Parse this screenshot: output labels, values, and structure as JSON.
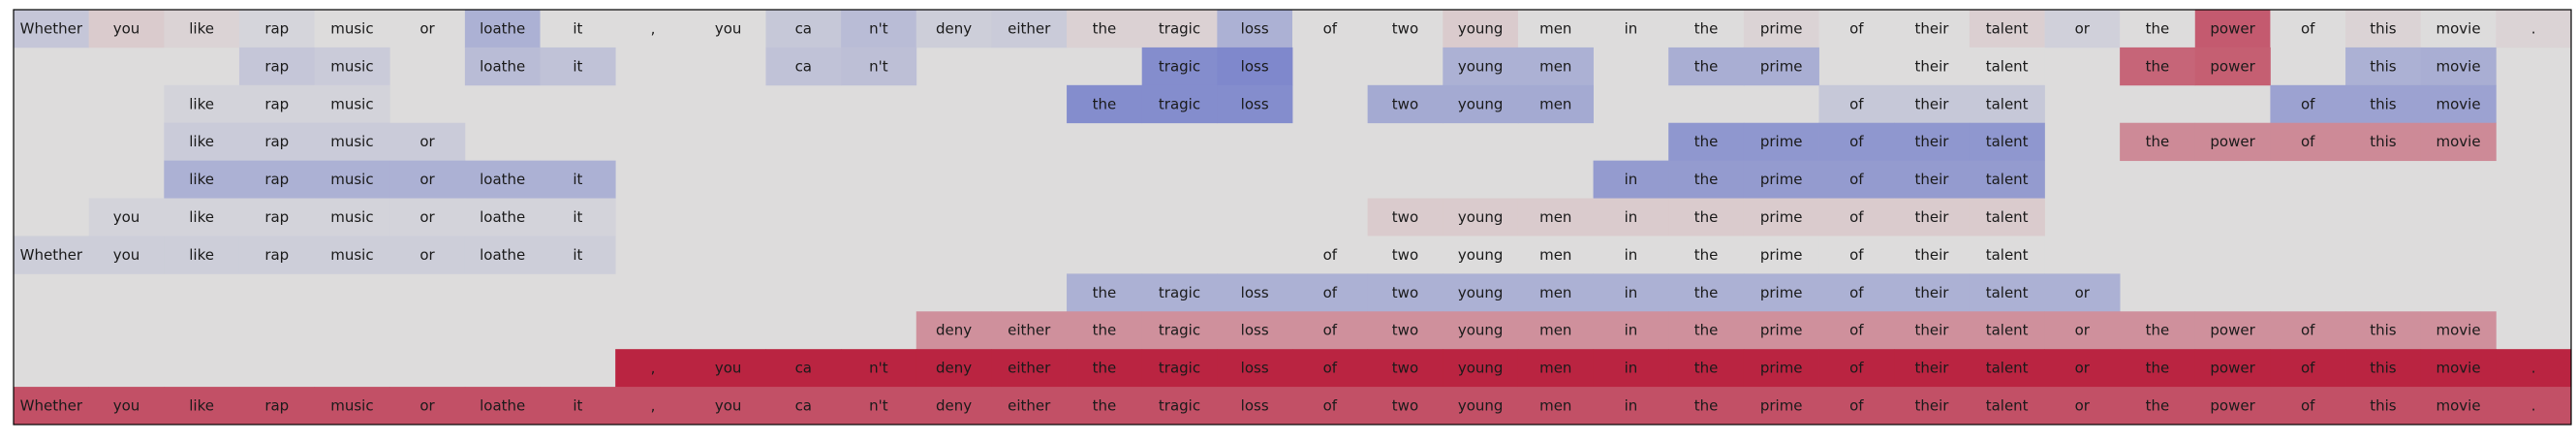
{
  "chart_data": {
    "type": "heatmap",
    "title": "",
    "xlabel": "",
    "ylabel": "",
    "colormap": "coolwarm",
    "value_range": [
      -1,
      1
    ],
    "value_note": "cell colour = signed weight on a blue(negative)-grey(0)-red(positive) scale; empty/grey cells are tokens not in the phrase",
    "tokens": [
      "Whether",
      "you",
      "like",
      "rap",
      "music",
      "or",
      "loathe",
      "it",
      ",",
      "you",
      "ca",
      "n't",
      "deny",
      "either",
      "the",
      "tragic",
      "loss",
      "of",
      "two",
      "young",
      "men",
      "in",
      "the",
      "prime",
      "of",
      "their",
      "talent",
      "or",
      "the",
      "power",
      "of",
      "this",
      "movie",
      "."
    ],
    "rows": [
      {
        "cells": [
          {
            "i": 0,
            "v": -0.15
          },
          {
            "i": 1,
            "v": 0.08
          },
          {
            "i": 2,
            "v": 0.04
          },
          {
            "i": 3,
            "v": -0.05
          },
          {
            "i": 4,
            "v": 0.0
          },
          {
            "i": 5,
            "v": 0.0
          },
          {
            "i": 6,
            "v": -0.3
          },
          {
            "i": 7,
            "v": 0.0
          },
          {
            "i": 8,
            "v": 0.0
          },
          {
            "i": 9,
            "v": 0.0
          },
          {
            "i": 10,
            "v": -0.14
          },
          {
            "i": 11,
            "v": -0.22
          },
          {
            "i": 12,
            "v": -0.1
          },
          {
            "i": 13,
            "v": -0.12
          },
          {
            "i": 14,
            "v": 0.05
          },
          {
            "i": 15,
            "v": 0.05
          },
          {
            "i": 16,
            "v": -0.3
          },
          {
            "i": 17,
            "v": 0.0
          },
          {
            "i": 18,
            "v": 0.0
          },
          {
            "i": 19,
            "v": 0.08
          },
          {
            "i": 20,
            "v": 0.0
          },
          {
            "i": 21,
            "v": 0.0
          },
          {
            "i": 22,
            "v": 0.0
          },
          {
            "i": 23,
            "v": 0.04
          },
          {
            "i": 24,
            "v": 0.0
          },
          {
            "i": 25,
            "v": 0.0
          },
          {
            "i": 26,
            "v": 0.06
          },
          {
            "i": 27,
            "v": -0.08
          },
          {
            "i": 28,
            "v": 0.0
          },
          {
            "i": 29,
            "v": 0.6
          },
          {
            "i": 30,
            "v": 0.0
          },
          {
            "i": 31,
            "v": 0.04
          },
          {
            "i": 32,
            "v": 0.0
          },
          {
            "i": 33,
            "v": 0.04
          }
        ]
      },
      {
        "cells": [
          {
            "i": 3,
            "v": -0.15
          },
          {
            "i": 4,
            "v": -0.12
          },
          {
            "i": 6,
            "v": -0.22
          },
          {
            "i": 7,
            "v": -0.18
          },
          {
            "i": 10,
            "v": -0.18
          },
          {
            "i": 11,
            "v": -0.2
          },
          {
            "i": 15,
            "v": -0.55
          },
          {
            "i": 16,
            "v": -0.58
          },
          {
            "i": 19,
            "v": -0.3
          },
          {
            "i": 20,
            "v": -0.3
          },
          {
            "i": 22,
            "v": -0.32
          },
          {
            "i": 23,
            "v": -0.32
          },
          {
            "i": 25,
            "v": 0.0
          },
          {
            "i": 26,
            "v": 0.0
          },
          {
            "i": 28,
            "v": 0.55
          },
          {
            "i": 29,
            "v": 0.58
          },
          {
            "i": 31,
            "v": -0.3
          },
          {
            "i": 32,
            "v": -0.32
          }
        ]
      },
      {
        "cells": [
          {
            "i": 2,
            "v": -0.06
          },
          {
            "i": 3,
            "v": -0.06
          },
          {
            "i": 4,
            "v": -0.06
          },
          {
            "i": 14,
            "v": -0.55
          },
          {
            "i": 15,
            "v": -0.55
          },
          {
            "i": 16,
            "v": -0.55
          },
          {
            "i": 18,
            "v": -0.35
          },
          {
            "i": 19,
            "v": -0.35
          },
          {
            "i": 20,
            "v": -0.35
          },
          {
            "i": 24,
            "v": -0.14
          },
          {
            "i": 25,
            "v": -0.14
          },
          {
            "i": 26,
            "v": -0.14
          },
          {
            "i": 30,
            "v": -0.4
          },
          {
            "i": 31,
            "v": -0.4
          },
          {
            "i": 32,
            "v": -0.4
          }
        ]
      },
      {
        "cells": [
          {
            "i": 2,
            "v": -0.12
          },
          {
            "i": 3,
            "v": -0.12
          },
          {
            "i": 4,
            "v": -0.12
          },
          {
            "i": 5,
            "v": -0.12
          },
          {
            "i": 22,
            "v": -0.48
          },
          {
            "i": 23,
            "v": -0.48
          },
          {
            "i": 24,
            "v": -0.48
          },
          {
            "i": 25,
            "v": -0.48
          },
          {
            "i": 26,
            "v": -0.48
          },
          {
            "i": 28,
            "v": 0.38
          },
          {
            "i": 29,
            "v": 0.38
          },
          {
            "i": 30,
            "v": 0.38
          },
          {
            "i": 31,
            "v": 0.38
          },
          {
            "i": 32,
            "v": 0.38
          }
        ]
      },
      {
        "cells": [
          {
            "i": 2,
            "v": -0.3
          },
          {
            "i": 3,
            "v": -0.3
          },
          {
            "i": 4,
            "v": -0.3
          },
          {
            "i": 5,
            "v": -0.3
          },
          {
            "i": 6,
            "v": -0.3
          },
          {
            "i": 7,
            "v": -0.3
          },
          {
            "i": 21,
            "v": -0.45
          },
          {
            "i": 22,
            "v": -0.45
          },
          {
            "i": 23,
            "v": -0.45
          },
          {
            "i": 24,
            "v": -0.45
          },
          {
            "i": 25,
            "v": -0.45
          },
          {
            "i": 26,
            "v": -0.45
          }
        ]
      },
      {
        "cells": [
          {
            "i": 1,
            "v": -0.06
          },
          {
            "i": 2,
            "v": -0.06
          },
          {
            "i": 3,
            "v": -0.06
          },
          {
            "i": 4,
            "v": -0.06
          },
          {
            "i": 5,
            "v": -0.06
          },
          {
            "i": 6,
            "v": -0.06
          },
          {
            "i": 7,
            "v": -0.06
          },
          {
            "i": 18,
            "v": 0.08
          },
          {
            "i": 19,
            "v": 0.08
          },
          {
            "i": 20,
            "v": 0.08
          },
          {
            "i": 21,
            "v": 0.08
          },
          {
            "i": 22,
            "v": 0.08
          },
          {
            "i": 23,
            "v": 0.08
          },
          {
            "i": 24,
            "v": 0.08
          },
          {
            "i": 25,
            "v": 0.08
          },
          {
            "i": 26,
            "v": 0.08
          }
        ]
      },
      {
        "cells": [
          {
            "i": 0,
            "v": -0.1
          },
          {
            "i": 1,
            "v": -0.1
          },
          {
            "i": 2,
            "v": -0.1
          },
          {
            "i": 3,
            "v": -0.1
          },
          {
            "i": 4,
            "v": -0.1
          },
          {
            "i": 5,
            "v": -0.1
          },
          {
            "i": 6,
            "v": -0.1
          },
          {
            "i": 7,
            "v": -0.1
          },
          {
            "i": 17,
            "v": 0.0
          },
          {
            "i": 18,
            "v": 0.0
          },
          {
            "i": 19,
            "v": 0.0
          },
          {
            "i": 20,
            "v": 0.0
          },
          {
            "i": 21,
            "v": 0.0
          },
          {
            "i": 22,
            "v": 0.0
          },
          {
            "i": 23,
            "v": 0.0
          },
          {
            "i": 24,
            "v": 0.0
          },
          {
            "i": 25,
            "v": 0.0
          },
          {
            "i": 26,
            "v": 0.0
          }
        ]
      },
      {
        "cells": [
          {
            "i": 14,
            "v": -0.3
          },
          {
            "i": 15,
            "v": -0.3
          },
          {
            "i": 16,
            "v": -0.3
          },
          {
            "i": 17,
            "v": -0.3
          },
          {
            "i": 18,
            "v": -0.3
          },
          {
            "i": 19,
            "v": -0.3
          },
          {
            "i": 20,
            "v": -0.3
          },
          {
            "i": 21,
            "v": -0.3
          },
          {
            "i": 22,
            "v": -0.3
          },
          {
            "i": 23,
            "v": -0.3
          },
          {
            "i": 24,
            "v": -0.3
          },
          {
            "i": 25,
            "v": -0.3
          },
          {
            "i": 26,
            "v": -0.3
          },
          {
            "i": 27,
            "v": -0.3
          }
        ]
      },
      {
        "cells": [
          {
            "i": 12,
            "v": 0.35
          },
          {
            "i": 13,
            "v": 0.35
          },
          {
            "i": 14,
            "v": 0.35
          },
          {
            "i": 15,
            "v": 0.35
          },
          {
            "i": 16,
            "v": 0.35
          },
          {
            "i": 17,
            "v": 0.35
          },
          {
            "i": 18,
            "v": 0.35
          },
          {
            "i": 19,
            "v": 0.35
          },
          {
            "i": 20,
            "v": 0.35
          },
          {
            "i": 21,
            "v": 0.35
          },
          {
            "i": 22,
            "v": 0.35
          },
          {
            "i": 23,
            "v": 0.35
          },
          {
            "i": 24,
            "v": 0.35
          },
          {
            "i": 25,
            "v": 0.35
          },
          {
            "i": 26,
            "v": 0.35
          },
          {
            "i": 27,
            "v": 0.35
          },
          {
            "i": 28,
            "v": 0.35
          },
          {
            "i": 29,
            "v": 0.35
          },
          {
            "i": 30,
            "v": 0.35
          },
          {
            "i": 31,
            "v": 0.35
          },
          {
            "i": 32,
            "v": 0.35
          }
        ]
      },
      {
        "cells": [
          {
            "i": 8,
            "v": 0.85
          },
          {
            "i": 9,
            "v": 0.85
          },
          {
            "i": 10,
            "v": 0.85
          },
          {
            "i": 11,
            "v": 0.85
          },
          {
            "i": 12,
            "v": 0.85
          },
          {
            "i": 13,
            "v": 0.85
          },
          {
            "i": 14,
            "v": 0.85
          },
          {
            "i": 15,
            "v": 0.85
          },
          {
            "i": 16,
            "v": 0.85
          },
          {
            "i": 17,
            "v": 0.85
          },
          {
            "i": 18,
            "v": 0.85
          },
          {
            "i": 19,
            "v": 0.85
          },
          {
            "i": 20,
            "v": 0.85
          },
          {
            "i": 21,
            "v": 0.85
          },
          {
            "i": 22,
            "v": 0.85
          },
          {
            "i": 23,
            "v": 0.85
          },
          {
            "i": 24,
            "v": 0.85
          },
          {
            "i": 25,
            "v": 0.85
          },
          {
            "i": 26,
            "v": 0.85
          },
          {
            "i": 27,
            "v": 0.85
          },
          {
            "i": 28,
            "v": 0.85
          },
          {
            "i": 29,
            "v": 0.85
          },
          {
            "i": 30,
            "v": 0.85
          },
          {
            "i": 31,
            "v": 0.85
          },
          {
            "i": 32,
            "v": 0.85
          },
          {
            "i": 33,
            "v": 0.85
          }
        ]
      },
      {
        "cells": [
          {
            "i": 0,
            "v": 0.65
          },
          {
            "i": 1,
            "v": 0.65
          },
          {
            "i": 2,
            "v": 0.65
          },
          {
            "i": 3,
            "v": 0.65
          },
          {
            "i": 4,
            "v": 0.65
          },
          {
            "i": 5,
            "v": 0.65
          },
          {
            "i": 6,
            "v": 0.65
          },
          {
            "i": 7,
            "v": 0.65
          },
          {
            "i": 8,
            "v": 0.65
          },
          {
            "i": 9,
            "v": 0.65
          },
          {
            "i": 10,
            "v": 0.65
          },
          {
            "i": 11,
            "v": 0.65
          },
          {
            "i": 12,
            "v": 0.65
          },
          {
            "i": 13,
            "v": 0.65
          },
          {
            "i": 14,
            "v": 0.65
          },
          {
            "i": 15,
            "v": 0.65
          },
          {
            "i": 16,
            "v": 0.65
          },
          {
            "i": 17,
            "v": 0.65
          },
          {
            "i": 18,
            "v": 0.65
          },
          {
            "i": 19,
            "v": 0.65
          },
          {
            "i": 20,
            "v": 0.65
          },
          {
            "i": 21,
            "v": 0.65
          },
          {
            "i": 22,
            "v": 0.65
          },
          {
            "i": 23,
            "v": 0.65
          },
          {
            "i": 24,
            "v": 0.65
          },
          {
            "i": 25,
            "v": 0.65
          },
          {
            "i": 26,
            "v": 0.65
          },
          {
            "i": 27,
            "v": 0.65
          },
          {
            "i": 28,
            "v": 0.65
          },
          {
            "i": 29,
            "v": 0.65
          },
          {
            "i": 30,
            "v": 0.65
          },
          {
            "i": 31,
            "v": 0.65
          },
          {
            "i": 32,
            "v": 0.65
          },
          {
            "i": 33,
            "v": 0.65
          }
        ]
      }
    ]
  }
}
